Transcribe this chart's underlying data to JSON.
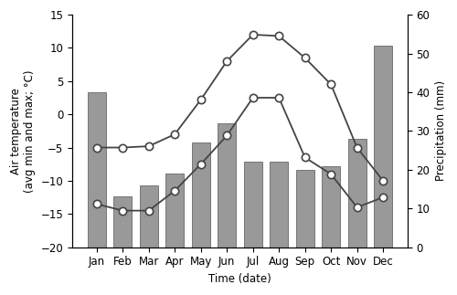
{
  "months": [
    "Jan",
    "Feb",
    "Mar",
    "Apr",
    "May",
    "Jun",
    "Jul",
    "Aug",
    "Sep",
    "Oct",
    "Nov",
    "Dec"
  ],
  "precipitation": [
    40,
    13,
    16,
    19,
    27,
    32,
    22,
    22,
    20,
    21,
    28,
    52
  ],
  "temp_max": [
    -5,
    -5,
    -4.8,
    -3,
    2.2,
    8,
    12,
    11.8,
    8.5,
    4.5,
    -5,
    -10
  ],
  "temp_min": [
    -13.5,
    -14.5,
    -14.5,
    -11.5,
    -7.5,
    -3.2,
    2.5,
    2.5,
    -6.5,
    -9,
    -14,
    -12.5
  ],
  "bar_color": "#999999",
  "line_color": "#444444",
  "marker_facecolor": "white",
  "marker_edgecolor": "#444444",
  "ylabel_left": "Air temperature\n(avg min and max; °C)",
  "ylabel_right": "Precipitation (mm)",
  "xlabel": "Time (date)",
  "ylim_left": [
    -20,
    15
  ],
  "ylim_right": [
    0,
    60
  ],
  "yticks_left": [
    -20,
    -15,
    -10,
    -5,
    0,
    5,
    10,
    15
  ],
  "yticks_right": [
    0,
    10,
    20,
    30,
    40,
    50,
    60
  ],
  "background_color": "#ffffff"
}
